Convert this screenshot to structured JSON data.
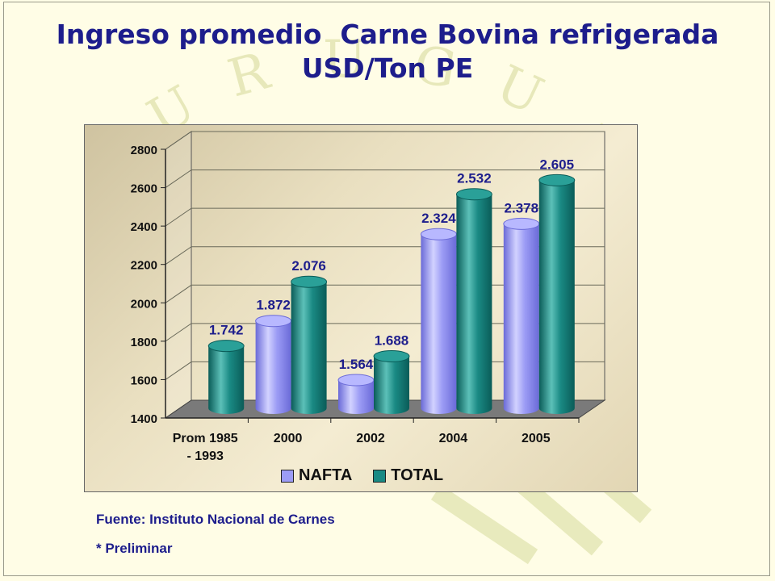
{
  "title_lines": [
    "Ingreso promedio  Carne Bovina refrigerada",
    "USD/Ton PE"
  ],
  "footnotes": {
    "source": "Fuente: Instituto Nacional de Carnes",
    "note": "* Preliminar"
  },
  "colors": {
    "title": "#1d1d8c",
    "nafta": "#9c9cf5",
    "total": "#1a8a84",
    "background": "#fffde6"
  },
  "chart_data": {
    "type": "bar",
    "categories": [
      "Prom 1985 - 1993",
      "2000",
      "2002",
      "2004",
      "2005"
    ],
    "category_label_lines": [
      [
        "Prom 1985",
        "- 1993"
      ],
      [
        "2000"
      ],
      [
        "2002"
      ],
      [
        "2004"
      ],
      [
        "2005"
      ]
    ],
    "series": [
      {
        "name": "NAFTA",
        "values": [
          null,
          1872,
          1564,
          2324,
          2378
        ],
        "labels": [
          null,
          "1.872",
          "1.564",
          "2.324",
          "2.378"
        ],
        "color": "#9c9cf5"
      },
      {
        "name": "TOTAL",
        "values": [
          1742,
          2076,
          1688,
          2532,
          2605
        ],
        "labels": [
          "1.742",
          "2.076",
          "1.688",
          "2.532",
          "2.605"
        ],
        "color": "#1a8a84"
      }
    ],
    "ylim": [
      1400,
      2800
    ],
    "yticks": [
      1400,
      1600,
      1800,
      2000,
      2200,
      2400,
      2600,
      2800
    ],
    "grid": true,
    "legend_position": "bottom",
    "style": "3d-cylinder"
  }
}
